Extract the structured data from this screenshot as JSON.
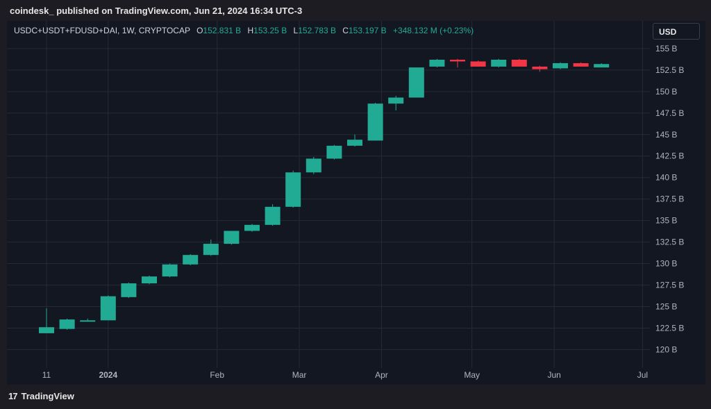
{
  "header": {
    "published": "coindesk_ published on TradingView.com, Jun 21, 2024 16:34 UTC-3"
  },
  "legend": {
    "symbol": "USDC+USDT+FDUSD+DAI, 1W, CRYPTOCAP",
    "o_label": "O",
    "o_value": "152.831 B",
    "h_label": "H",
    "h_value": "153.25 B",
    "l_label": "L",
    "l_value": "152.783 B",
    "c_label": "C",
    "c_value": "153.197 B",
    "change": "+348.132 M (+0.23%)"
  },
  "currency_button": "USD",
  "footer": {
    "logo_mark": "17",
    "brand": "TradingView"
  },
  "colors": {
    "up": "#22ab94",
    "down": "#f23645",
    "grid": "#262a36",
    "axis_text": "#b2b5be",
    "background": "#131722"
  },
  "chart_data": {
    "type": "candlestick",
    "unit": "B",
    "ylim": [
      118.5,
      155.8
    ],
    "y_ticks": [
      "120 B",
      "122.5 B",
      "125 B",
      "127.5 B",
      "130 B",
      "132.5 B",
      "135 B",
      "137.5 B",
      "140 B",
      "142.5 B",
      "145 B",
      "147.5 B",
      "150 B",
      "152.5 B",
      "155 B"
    ],
    "y_tick_values": [
      120,
      122.5,
      125,
      127.5,
      130,
      132.5,
      135,
      137.5,
      140,
      142.5,
      145,
      147.5,
      150,
      152.5,
      155
    ],
    "x_ticks": [
      {
        "label": "11",
        "bold": false,
        "pos": 0
      },
      {
        "label": "2024",
        "bold": true,
        "pos": 3
      },
      {
        "label": "Feb",
        "bold": false,
        "pos": 8.3
      },
      {
        "label": "Mar",
        "bold": false,
        "pos": 12.3
      },
      {
        "label": "Apr",
        "bold": false,
        "pos": 16.3
      },
      {
        "label": "May",
        "bold": false,
        "pos": 20.7
      },
      {
        "label": "Jun",
        "bold": false,
        "pos": 24.7
      },
      {
        "label": "Jul",
        "bold": false,
        "pos": 29
      }
    ],
    "candles": [
      {
        "o": 121.9,
        "h": 124.8,
        "l": 121.9,
        "c": 122.6
      },
      {
        "o": 122.4,
        "h": 123.6,
        "l": 122.3,
        "c": 123.5
      },
      {
        "o": 123.4,
        "h": 123.6,
        "l": 123.3,
        "c": 123.4
      },
      {
        "o": 123.4,
        "h": 126.3,
        "l": 123.4,
        "c": 126.2
      },
      {
        "o": 126.1,
        "h": 127.8,
        "l": 126.0,
        "c": 127.7
      },
      {
        "o": 127.7,
        "h": 128.6,
        "l": 127.6,
        "c": 128.5
      },
      {
        "o": 128.5,
        "h": 130.0,
        "l": 128.4,
        "c": 129.9
      },
      {
        "o": 129.9,
        "h": 131.1,
        "l": 129.8,
        "c": 131.0
      },
      {
        "o": 131.0,
        "h": 132.8,
        "l": 130.9,
        "c": 132.3
      },
      {
        "o": 132.3,
        "h": 133.8,
        "l": 132.2,
        "c": 133.8
      },
      {
        "o": 133.8,
        "h": 134.6,
        "l": 133.7,
        "c": 134.5
      },
      {
        "o": 134.5,
        "h": 136.9,
        "l": 134.4,
        "c": 136.6
      },
      {
        "o": 136.6,
        "h": 140.8,
        "l": 136.5,
        "c": 140.6
      },
      {
        "o": 140.6,
        "h": 142.4,
        "l": 140.4,
        "c": 142.2
      },
      {
        "o": 142.2,
        "h": 143.8,
        "l": 142.1,
        "c": 143.7
      },
      {
        "o": 143.7,
        "h": 145.0,
        "l": 143.6,
        "c": 144.4
      },
      {
        "o": 144.3,
        "h": 148.7,
        "l": 144.3,
        "c": 148.6
      },
      {
        "o": 148.6,
        "h": 149.5,
        "l": 147.8,
        "c": 149.3
      },
      {
        "o": 149.3,
        "h": 152.8,
        "l": 149.3,
        "c": 152.8
      },
      {
        "o": 152.9,
        "h": 153.8,
        "l": 152.8,
        "c": 153.7
      },
      {
        "o": 153.7,
        "h": 153.8,
        "l": 152.8,
        "c": 153.5
      },
      {
        "o": 153.5,
        "h": 153.6,
        "l": 152.9,
        "c": 152.9
      },
      {
        "o": 152.9,
        "h": 153.8,
        "l": 152.8,
        "c": 153.7
      },
      {
        "o": 153.7,
        "h": 153.8,
        "l": 152.9,
        "c": 152.9
      },
      {
        "o": 152.9,
        "h": 153.0,
        "l": 152.3,
        "c": 152.6
      },
      {
        "o": 152.7,
        "h": 153.4,
        "l": 152.6,
        "c": 153.3
      },
      {
        "o": 153.3,
        "h": 153.4,
        "l": 152.9,
        "c": 152.9
      },
      {
        "o": 152.8,
        "h": 153.3,
        "l": 152.8,
        "c": 153.2
      }
    ]
  }
}
